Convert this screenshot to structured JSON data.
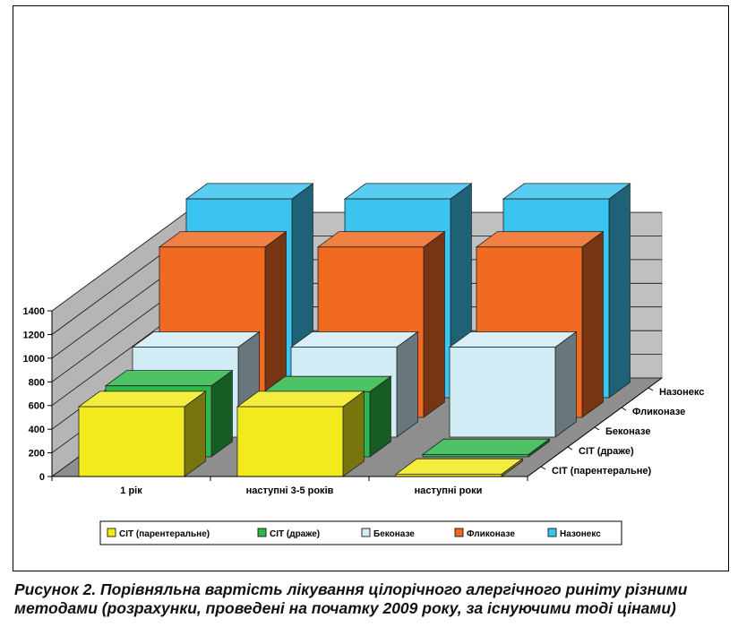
{
  "figure": {
    "caption": "Рисунок 2. Порівняльна вартість лікування цілорічного алергічного риніту різними методами (розрахунки, проведені на початку 2009 року, за існуючими тоді цінами)"
  },
  "chart_data": {
    "type": "bar",
    "stacked": false,
    "projection": "3d-rows",
    "categories": [
      "1 рік",
      "наступні 3-5 років",
      "наступні роки"
    ],
    "series": [
      {
        "name": "СІТ (парентеральне)",
        "color": "#f2ea1c",
        "values": [
          590,
          590,
          20
        ]
      },
      {
        "name": "СІТ (драже)",
        "color": "#2eb84a",
        "values": [
          600,
          550,
          20
        ]
      },
      {
        "name": "Беконазе",
        "color": "#d2ecf6",
        "values": [
          760,
          760,
          760
        ]
      },
      {
        "name": "Фликоназе",
        "color": "#f06a22",
        "values": [
          1440,
          1440,
          1440
        ]
      },
      {
        "name": "Назонекс",
        "color": "#3bc4ef",
        "values": [
          1680,
          1680,
          1680
        ]
      }
    ],
    "yticks": [
      0,
      200,
      400,
      600,
      800,
      1000,
      1200,
      1400
    ],
    "ylim": [
      0,
      1400
    ],
    "title": "",
    "xlabel": "",
    "ylabel": "",
    "grid": true,
    "legend": "bottom"
  }
}
